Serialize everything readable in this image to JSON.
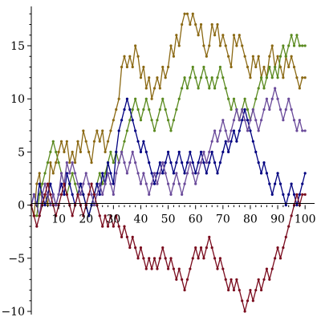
{
  "chart_data": {
    "type": "line",
    "title": "",
    "xlabel": "",
    "ylabel": "",
    "xlim": [
      0,
      102
    ],
    "ylim": [
      -10.3,
      18.7
    ],
    "grid": false,
    "x_ticks": [
      10,
      20,
      30,
      40,
      50,
      60,
      70,
      80,
      90,
      100
    ],
    "y_ticks": [
      -10,
      -5,
      0,
      5,
      10,
      15
    ],
    "x_tick_labels": [
      "10",
      "20",
      "30",
      "40",
      "50",
      "60",
      "70",
      "80",
      "90",
      "100"
    ],
    "y_tick_labels": [
      "−10",
      "−5",
      "0",
      "5",
      "10",
      "15"
    ],
    "markers": true,
    "series_step": 1,
    "series": [
      {
        "color": "#8b6914",
        "values": [
          0,
          -1,
          2,
          3,
          0,
          1,
          0,
          4,
          3,
          4,
          5,
          6,
          5,
          6,
          4,
          5,
          4,
          6,
          5,
          7,
          6,
          5,
          4,
          6,
          7,
          6,
          7,
          5,
          6,
          7,
          8,
          9,
          10,
          13,
          14,
          13,
          14,
          13,
          15,
          14,
          12,
          13,
          11,
          12,
          10,
          11,
          12,
          11,
          13,
          12,
          13,
          15,
          14,
          16,
          15,
          17,
          18,
          18,
          17,
          18,
          17,
          16,
          17,
          15,
          14,
          15,
          17,
          16,
          17,
          15,
          16,
          15,
          14,
          13,
          16,
          15,
          16,
          15,
          14,
          13,
          12,
          14,
          13,
          14,
          12,
          13,
          12,
          14,
          15,
          13,
          14,
          13,
          12,
          14,
          13,
          14,
          13,
          12,
          11,
          12,
          12
        ]
      },
      {
        "color": "#5a8a1f",
        "values": [
          0,
          -1,
          -1,
          1,
          2,
          3,
          4,
          5,
          6,
          5,
          4,
          3,
          2,
          1,
          2,
          3,
          2,
          1,
          2,
          1,
          0,
          -1,
          0,
          1,
          2,
          3,
          2,
          3,
          4,
          5,
          4,
          5,
          4,
          5,
          6,
          7,
          8,
          9,
          10,
          9,
          8,
          9,
          10,
          9,
          8,
          7,
          8,
          9,
          10,
          9,
          8,
          7,
          8,
          9,
          10,
          11,
          12,
          11,
          12,
          13,
          12,
          11,
          12,
          13,
          12,
          11,
          12,
          11,
          12,
          13,
          12,
          11,
          10,
          9,
          10,
          9,
          8,
          9,
          10,
          9,
          8,
          9,
          10,
          11,
          12,
          11,
          12,
          13,
          12,
          13,
          12,
          14,
          15,
          14,
          15,
          16,
          15,
          16,
          15,
          15,
          15
        ]
      },
      {
        "color": "#000080",
        "values": [
          0,
          1,
          0,
          2,
          1,
          0,
          1,
          2,
          1,
          0,
          1,
          2,
          1,
          3,
          2,
          1,
          0,
          1,
          2,
          1,
          0,
          -1,
          0,
          1,
          2,
          1,
          3,
          2,
          4,
          3,
          2,
          5,
          7,
          8,
          9,
          10,
          9,
          8,
          7,
          6,
          5,
          6,
          5,
          4,
          3,
          2,
          3,
          4,
          3,
          4,
          5,
          4,
          3,
          4,
          5,
          4,
          3,
          4,
          5,
          4,
          3,
          4,
          5,
          4,
          3,
          4,
          5,
          4,
          3,
          4,
          5,
          6,
          5,
          6,
          7,
          6,
          7,
          8,
          9,
          8,
          7,
          6,
          5,
          4,
          3,
          4,
          3,
          2,
          1,
          2,
          3,
          2,
          1,
          0,
          1,
          2,
          1,
          0,
          1,
          2,
          3
        ]
      },
      {
        "color": "#6a4a9a",
        "values": [
          0,
          1,
          0,
          -1,
          1,
          2,
          1,
          0,
          1,
          0,
          1,
          3,
          2,
          4,
          3,
          4,
          3,
          2,
          1,
          2,
          3,
          2,
          1,
          0,
          1,
          2,
          1,
          2,
          3,
          2,
          1,
          3,
          4,
          5,
          4,
          3,
          4,
          5,
          4,
          3,
          2,
          3,
          2,
          1,
          2,
          3,
          2,
          3,
          4,
          3,
          2,
          1,
          2,
          3,
          2,
          1,
          2,
          3,
          4,
          3,
          2,
          3,
          4,
          5,
          4,
          5,
          6,
          7,
          6,
          7,
          8,
          7,
          6,
          7,
          8,
          9,
          8,
          9,
          8,
          7,
          8,
          9,
          8,
          7,
          8,
          9,
          10,
          9,
          10,
          11,
          10,
          9,
          8,
          9,
          10,
          9,
          8,
          7,
          8,
          7,
          7
        ]
      },
      {
        "color": "#7a0c1e",
        "values": [
          0,
          -1,
          -2,
          -1,
          0,
          1,
          2,
          1,
          0,
          -1,
          0,
          1,
          2,
          1,
          0,
          -1,
          0,
          1,
          0,
          -1,
          0,
          1,
          2,
          1,
          0,
          -1,
          -2,
          -1,
          -2,
          -1,
          -2,
          -1,
          -2,
          -3,
          -2,
          -3,
          -4,
          -3,
          -4,
          -5,
          -4,
          -5,
          -6,
          -5,
          -6,
          -5,
          -6,
          -5,
          -4,
          -5,
          -6,
          -5,
          -6,
          -7,
          -6,
          -7,
          -8,
          -7,
          -6,
          -5,
          -4,
          -5,
          -4,
          -5,
          -4,
          -3,
          -4,
          -5,
          -6,
          -5,
          -6,
          -7,
          -8,
          -7,
          -8,
          -7,
          -8,
          -9,
          -10,
          -9,
          -8,
          -9,
          -8,
          -7,
          -8,
          -7,
          -6,
          -7,
          -6,
          -5,
          -4,
          -5,
          -4,
          -3,
          -2,
          -1,
          0,
          1,
          0,
          1,
          1
        ]
      }
    ]
  }
}
